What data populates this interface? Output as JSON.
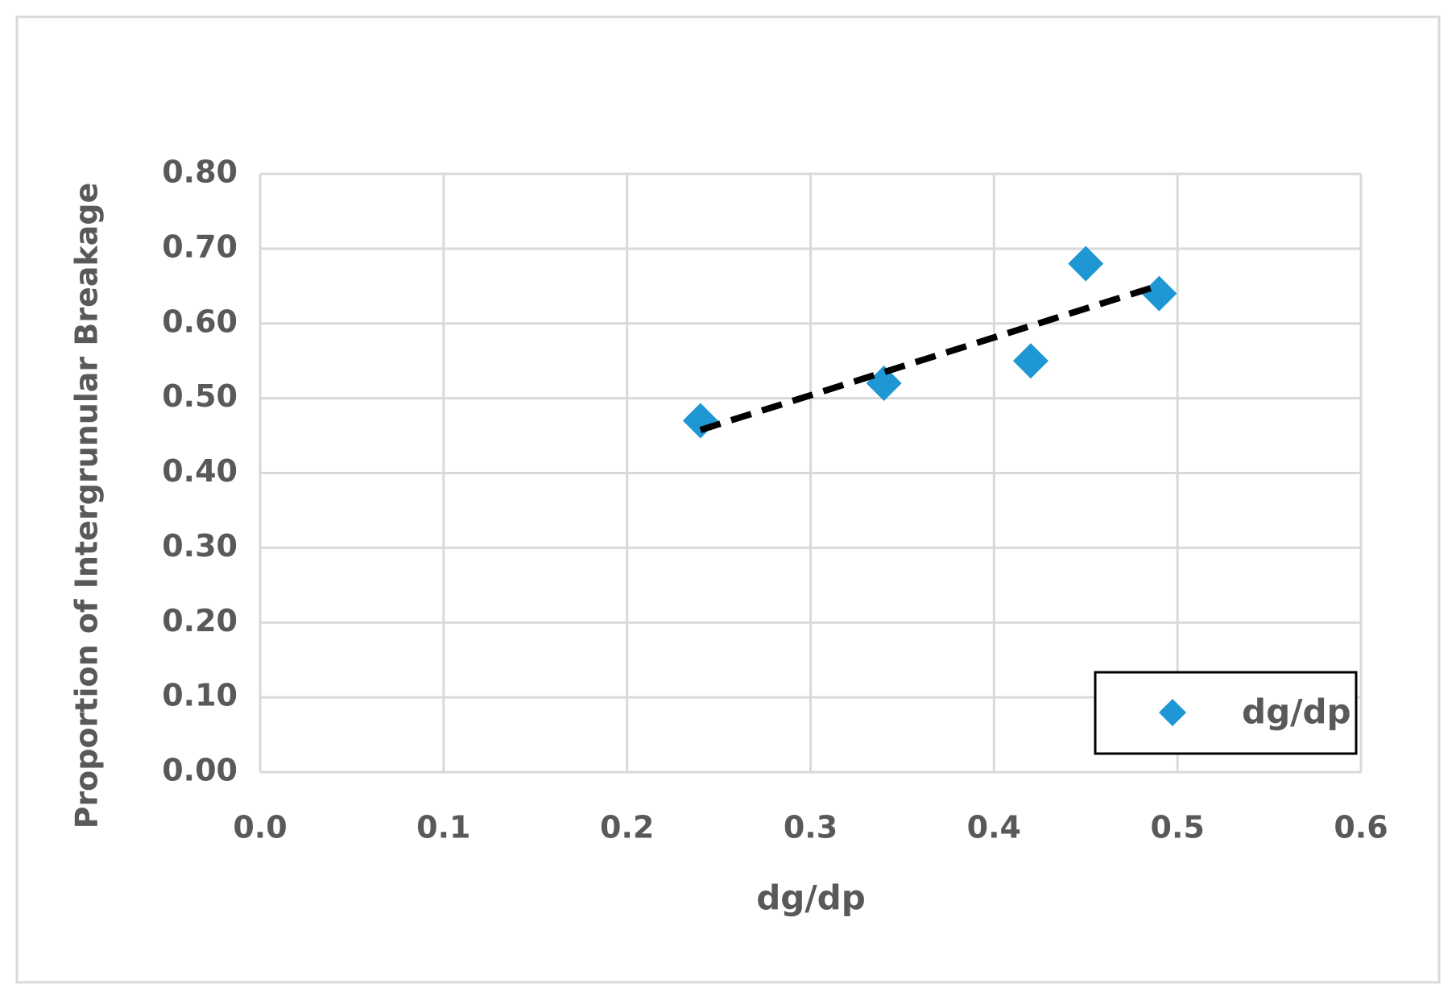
{
  "chart_data": {
    "type": "scatter",
    "x_label": "dg/dp",
    "y_label": "Proportion of Intergrunular Breakage",
    "series": [
      {
        "name": "dg/dp",
        "color": "#1f97d4",
        "x": [
          0.24,
          0.34,
          0.42,
          0.45,
          0.49
        ],
        "values": [
          0.47,
          0.52,
          0.55,
          0.68,
          0.64
        ]
      }
    ],
    "trendline": "linear",
    "trendline_color": "#000000",
    "xlim": [
      0,
      0.6
    ],
    "xticks": [
      {
        "value": 0,
        "label": "0.0"
      },
      0.1,
      0.2,
      0.3,
      0.4,
      0.5,
      0.6
    ],
    "ylim": [
      0,
      0.8
    ],
    "yticks": [
      {
        "value": 0,
        "label": "0.00"
      },
      {
        "value": 0.1,
        "label": "0.10"
      },
      {
        "value": 0.2,
        "label": "0.20"
      },
      {
        "value": 0.3,
        "label": "0.30"
      },
      {
        "value": 0.4,
        "label": "0.40"
      },
      {
        "value": 0.5,
        "label": "0.50"
      },
      {
        "value": 0.6,
        "label": "0.60"
      },
      {
        "value": 0.7,
        "label": "0.70"
      },
      {
        "value": 0.8,
        "label": "0.80"
      }
    ],
    "grid": true,
    "legend": "lower right"
  }
}
